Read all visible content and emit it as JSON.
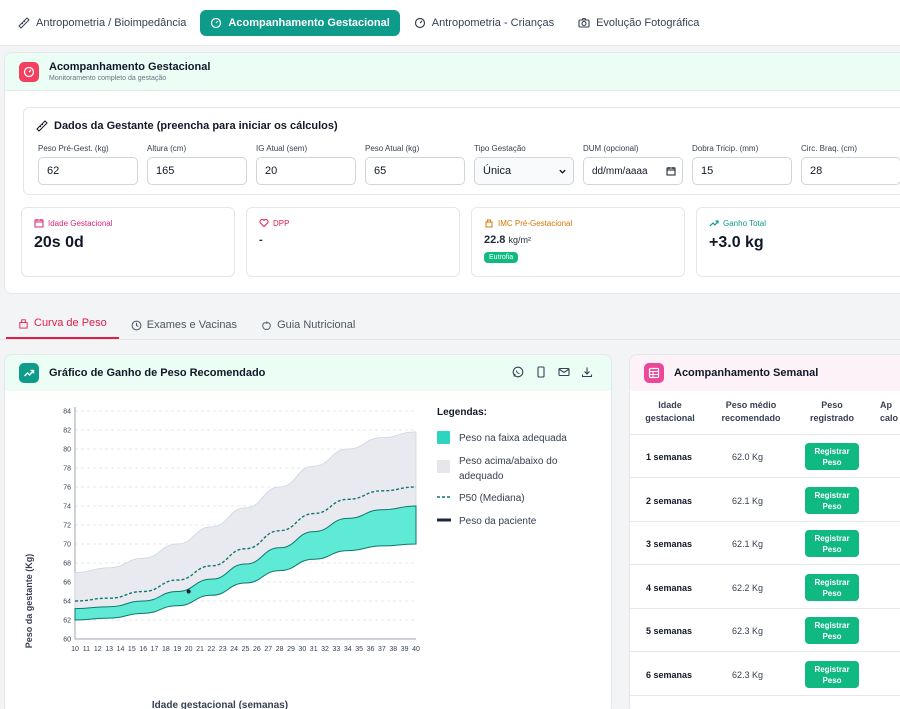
{
  "tabs": [
    {
      "label": "Antropometria / Bioimpedância",
      "icon": "ruler-icon"
    },
    {
      "label": "Acompanhamento Gestacional",
      "icon": "gauge-icon"
    },
    {
      "label": "Antropometria - Crianças",
      "icon": "gauge-icon"
    },
    {
      "label": "Evolução Fotográfica",
      "icon": "camera-icon"
    }
  ],
  "section": {
    "title": "Acompanhamento Gestacional",
    "subtitle": "Monitoramento completo da gestação",
    "accent": "#e11d48"
  },
  "form": {
    "title": "Dados da Gestante (preencha para iniciar os cálculos)",
    "fields": [
      {
        "label": "Peso Pré-Gest. (kg)",
        "value": "62"
      },
      {
        "label": "Altura (cm)",
        "value": "165"
      },
      {
        "label": "IG Atual (sem)",
        "value": "20"
      },
      {
        "label": "Peso Atual (kg)",
        "value": "65"
      },
      {
        "label": "Tipo Gestação",
        "value": "Única"
      },
      {
        "label": "DUM (opcional)",
        "value": "dd/mm/aaaa"
      },
      {
        "label": "Dobra Tricip. (mm)",
        "value": "15"
      },
      {
        "label": "Circ. Braq. (cm)",
        "value": "28"
      }
    ]
  },
  "stats": {
    "ig": {
      "label": "Idade Gestacional",
      "value": "20s 0d",
      "color": "#db2777"
    },
    "dpp": {
      "label": "DPP",
      "value": "-",
      "color": "#e11d48"
    },
    "imc": {
      "label": "IMC Pré-Gestacional",
      "value": "22.8",
      "unit": "kg/m²",
      "badge": "Eutrofia",
      "color": "#d97706"
    },
    "gain": {
      "label": "Ganho Total",
      "value": "+3.0 kg",
      "color": "#0d9b8a"
    }
  },
  "subtabs": [
    {
      "label": "Curva de Peso"
    },
    {
      "label": "Exames e Vacinas"
    },
    {
      "label": "Guia Nutricional"
    }
  ],
  "chart_panel": {
    "title": "Gráfico de Ganho de Peso Recomendado"
  },
  "legend": {
    "title": "Legendas:",
    "items": [
      {
        "label": "Peso na faixa adequada"
      },
      {
        "label": "Peso acima/abaixo do"
      },
      {
        "label": "adequado"
      },
      {
        "label": "P50 (Mediana)"
      },
      {
        "label": "Peso da paciente"
      }
    ]
  },
  "chart_data": {
    "type": "area",
    "xlabel": "Idade gestacional (semanas)",
    "ylabel": "Peso da gestante (Kg)",
    "xlim": [
      10,
      40
    ],
    "ylim": [
      60,
      84
    ],
    "x_ticks": [
      10,
      11,
      12,
      13,
      14,
      15,
      16,
      17,
      18,
      19,
      20,
      21,
      22,
      23,
      24,
      25,
      26,
      27,
      28,
      29,
      30,
      31,
      32,
      33,
      34,
      35,
      36,
      37,
      38,
      39,
      40
    ],
    "y_ticks": [
      60,
      62,
      64,
      66,
      68,
      70,
      72,
      74,
      76,
      78,
      80,
      82,
      84
    ],
    "grid": true,
    "x": [
      10,
      13,
      16,
      19,
      22,
      25,
      28,
      31,
      34,
      37,
      40
    ],
    "series": [
      {
        "name": "Peso acima/abaixo do adequado",
        "upper": [
          67,
          67.5,
          68.5,
          70,
          71.8,
          73.8,
          76,
          78.2,
          80,
          81.2,
          81.8
        ],
        "lower": [
          62,
          62.2,
          62.7,
          63.5,
          64.6,
          65.9,
          67.2,
          68.4,
          69.3,
          69.8,
          70
        ]
      },
      {
        "name": "Peso na faixa adequada",
        "upper": [
          63.2,
          63.4,
          64,
          65,
          66.3,
          67.9,
          69.6,
          71.3,
          72.7,
          73.6,
          74
        ],
        "lower": [
          62,
          62.2,
          62.7,
          63.5,
          64.6,
          65.9,
          67.2,
          68.4,
          69.3,
          69.8,
          70
        ]
      },
      {
        "name": "P50 (Mediana)",
        "values": [
          64,
          64.3,
          65,
          66.2,
          67.7,
          69.5,
          71.4,
          73.2,
          74.7,
          75.6,
          76
        ]
      },
      {
        "name": "Peso da paciente",
        "points": [
          [
            20,
            65
          ]
        ]
      }
    ],
    "colors": {
      "adequate": "#5eead4",
      "outside": "#e5e7eb",
      "median": "#0f766e",
      "patient": "#111827"
    }
  },
  "weekly": {
    "title": "Acompanhamento Semanal",
    "headers": [
      "Idade gestacional",
      "Peso médio recomendado",
      "Peso registrado",
      "Ap calo"
    ],
    "header_lines": [
      [
        "Idade",
        "gestacional"
      ],
      [
        "Peso médio",
        "recomendado"
      ],
      [
        "Peso",
        "registrado"
      ],
      [
        "Ap",
        "calo"
      ]
    ],
    "button_lines": [
      "Registrar",
      "Peso"
    ],
    "rows": [
      {
        "week": "1 semanas",
        "weight": "62.0 Kg"
      },
      {
        "week": "2 semanas",
        "weight": "62.1 Kg"
      },
      {
        "week": "3 semanas",
        "weight": "62.1 Kg"
      },
      {
        "week": "4 semanas",
        "weight": "62.2 Kg"
      },
      {
        "week": "5 semanas",
        "weight": "62.3 Kg"
      },
      {
        "week": "6 semanas",
        "weight": "62.3 Kg"
      }
    ]
  }
}
